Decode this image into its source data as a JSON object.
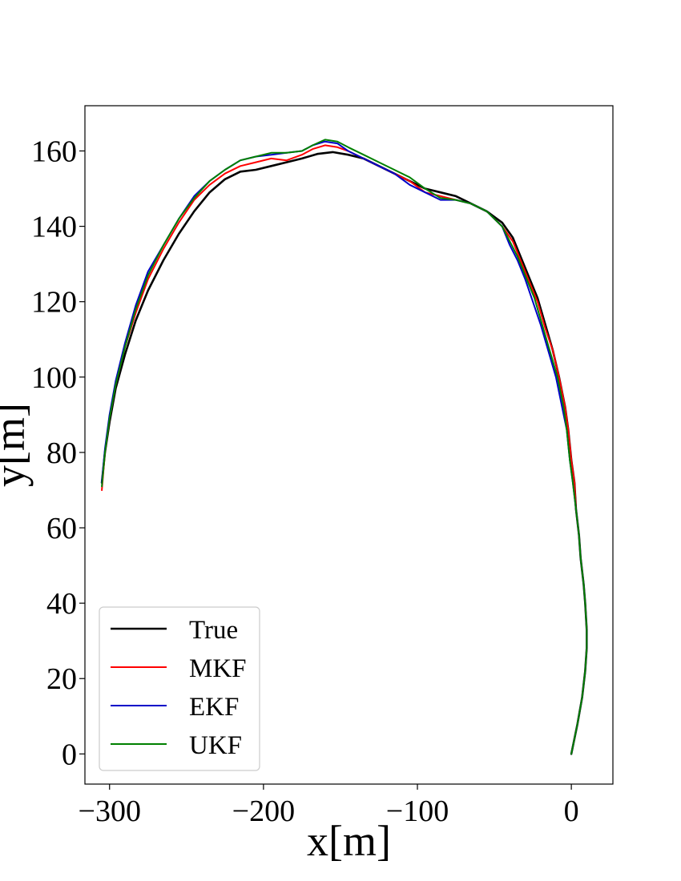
{
  "chart_data": {
    "type": "line",
    "title": "",
    "xlabel": "x[m]",
    "ylabel": "y[m]",
    "xlim": [
      -316,
      27
    ],
    "ylim": [
      -8,
      172
    ],
    "xticks": [
      -300,
      -200,
      -100,
      0
    ],
    "xtick_labels": [
      "−300",
      "−200",
      "−100",
      "0"
    ],
    "yticks": [
      0,
      20,
      40,
      60,
      80,
      100,
      120,
      140,
      160
    ],
    "ytick_labels": [
      "0",
      "20",
      "40",
      "60",
      "80",
      "100",
      "120",
      "140",
      "160"
    ],
    "grid": false,
    "legend_position": "lower-left",
    "series": [
      {
        "name": "True",
        "color": "#000000",
        "points": [
          [
            0,
            0
          ],
          [
            4,
            8
          ],
          [
            7,
            15
          ],
          [
            9,
            22
          ],
          [
            10,
            28
          ],
          [
            10,
            33
          ],
          [
            9,
            40
          ],
          [
            8,
            45
          ],
          [
            6,
            52
          ],
          [
            5,
            58
          ],
          [
            3,
            65
          ],
          [
            2,
            72
          ],
          [
            0,
            78
          ],
          [
            -2,
            86
          ],
          [
            -4,
            92
          ],
          [
            -8,
            100
          ],
          [
            -12,
            107
          ],
          [
            -17,
            114
          ],
          [
            -22,
            121
          ],
          [
            -28,
            127
          ],
          [
            -33,
            132
          ],
          [
            -38,
            137
          ],
          [
            -45,
            141
          ],
          [
            -55,
            144
          ],
          [
            -65,
            146
          ],
          [
            -75,
            148
          ],
          [
            -85,
            149
          ],
          [
            -95,
            150
          ],
          [
            -105,
            152
          ],
          [
            -115,
            154
          ],
          [
            -125,
            156
          ],
          [
            -135,
            158
          ],
          [
            -145,
            159
          ],
          [
            -155,
            159.7
          ],
          [
            -165,
            159.2
          ],
          [
            -175,
            158
          ],
          [
            -185,
            157
          ],
          [
            -195,
            156
          ],
          [
            -205,
            155
          ],
          [
            -215,
            154.5
          ],
          [
            -225,
            152.5
          ],
          [
            -235,
            149
          ],
          [
            -245,
            144
          ],
          [
            -255,
            138
          ],
          [
            -265,
            131
          ],
          [
            -275,
            123
          ],
          [
            -283,
            115
          ],
          [
            -290,
            106
          ],
          [
            -296,
            97
          ],
          [
            -300,
            88
          ],
          [
            -303,
            80
          ],
          [
            -305,
            72
          ]
        ]
      },
      {
        "name": "MKF",
        "color": "#ff0000",
        "points": [
          [
            0,
            0
          ],
          [
            4,
            8
          ],
          [
            7,
            15
          ],
          [
            9,
            22
          ],
          [
            10,
            28
          ],
          [
            10,
            33
          ],
          [
            9,
            40
          ],
          [
            8,
            45
          ],
          [
            6,
            52
          ],
          [
            5,
            58
          ],
          [
            3,
            65
          ],
          [
            2,
            72
          ],
          [
            0,
            78
          ],
          [
            -2,
            86
          ],
          [
            -4,
            92
          ],
          [
            -8,
            100
          ],
          [
            -12,
            107
          ],
          [
            -17,
            113
          ],
          [
            -22,
            120
          ],
          [
            -28,
            126
          ],
          [
            -33,
            131
          ],
          [
            -38,
            136
          ],
          [
            -45,
            140
          ],
          [
            -55,
            144
          ],
          [
            -65,
            146
          ],
          [
            -75,
            147
          ],
          [
            -85,
            148
          ],
          [
            -95,
            149
          ],
          [
            -105,
            152
          ],
          [
            -115,
            154
          ],
          [
            -125,
            156
          ],
          [
            -135,
            158
          ],
          [
            -145,
            160
          ],
          [
            -152,
            161
          ],
          [
            -160,
            161.5
          ],
          [
            -168,
            160.5
          ],
          [
            -175,
            159
          ],
          [
            -185,
            157.5
          ],
          [
            -195,
            158
          ],
          [
            -205,
            157
          ],
          [
            -215,
            156
          ],
          [
            -225,
            154
          ],
          [
            -235,
            151
          ],
          [
            -245,
            147
          ],
          [
            -255,
            141
          ],
          [
            -265,
            134
          ],
          [
            -275,
            126
          ],
          [
            -283,
            117
          ],
          [
            -290,
            108
          ],
          [
            -296,
            98
          ],
          [
            -300,
            89
          ],
          [
            -303,
            80
          ],
          [
            -305,
            70
          ]
        ]
      },
      {
        "name": "EKF",
        "color": "#0000c8",
        "points": [
          [
            0,
            0
          ],
          [
            4,
            8
          ],
          [
            7,
            15
          ],
          [
            9,
            22
          ],
          [
            10,
            28
          ],
          [
            10,
            33
          ],
          [
            9,
            40
          ],
          [
            8,
            45
          ],
          [
            6,
            52
          ],
          [
            5,
            58
          ],
          [
            3,
            65
          ],
          [
            1,
            72
          ],
          [
            -1,
            78
          ],
          [
            -3,
            86
          ],
          [
            -6,
            92
          ],
          [
            -10,
            100
          ],
          [
            -15,
            107
          ],
          [
            -20,
            114
          ],
          [
            -25,
            120
          ],
          [
            -30,
            126
          ],
          [
            -35,
            131
          ],
          [
            -40,
            135
          ],
          [
            -45,
            140
          ],
          [
            -55,
            144
          ],
          [
            -65,
            146
          ],
          [
            -75,
            147
          ],
          [
            -85,
            147
          ],
          [
            -95,
            149
          ],
          [
            -105,
            151
          ],
          [
            -115,
            154
          ],
          [
            -125,
            156
          ],
          [
            -135,
            158
          ],
          [
            -145,
            160
          ],
          [
            -152,
            162
          ],
          [
            -160,
            162.5
          ],
          [
            -168,
            161.5
          ],
          [
            -175,
            160
          ],
          [
            -185,
            159.5
          ],
          [
            -195,
            159
          ],
          [
            -205,
            158.5
          ],
          [
            -215,
            157.5
          ],
          [
            -225,
            155
          ],
          [
            -235,
            152
          ],
          [
            -245,
            148
          ],
          [
            -255,
            142
          ],
          [
            -265,
            135
          ],
          [
            -275,
            128
          ],
          [
            -283,
            119
          ],
          [
            -290,
            109
          ],
          [
            -296,
            99
          ],
          [
            -300,
            90
          ],
          [
            -303,
            81
          ],
          [
            -305,
            72
          ]
        ]
      },
      {
        "name": "UKF",
        "color": "#008000",
        "points": [
          [
            0,
            0
          ],
          [
            4,
            8
          ],
          [
            7,
            15
          ],
          [
            9,
            22
          ],
          [
            10,
            28
          ],
          [
            10,
            33
          ],
          [
            9,
            40
          ],
          [
            8,
            45
          ],
          [
            6,
            52
          ],
          [
            5,
            58
          ],
          [
            3,
            65
          ],
          [
            1,
            72
          ],
          [
            -1,
            78
          ],
          [
            -3,
            86
          ],
          [
            -5,
            92
          ],
          [
            -9,
            100
          ],
          [
            -14,
            107
          ],
          [
            -19,
            114
          ],
          [
            -24,
            121
          ],
          [
            -30,
            127
          ],
          [
            -35,
            132
          ],
          [
            -40,
            136
          ],
          [
            -45,
            140
          ],
          [
            -55,
            144
          ],
          [
            -65,
            146
          ],
          [
            -75,
            147
          ],
          [
            -85,
            147.5
          ],
          [
            -95,
            150
          ],
          [
            -105,
            153
          ],
          [
            -115,
            155
          ],
          [
            -125,
            157
          ],
          [
            -135,
            159
          ],
          [
            -145,
            161
          ],
          [
            -152,
            162.5
          ],
          [
            -160,
            163
          ],
          [
            -168,
            161.5
          ],
          [
            -175,
            160
          ],
          [
            -185,
            159.5
          ],
          [
            -195,
            159.5
          ],
          [
            -205,
            158.5
          ],
          [
            -215,
            157.5
          ],
          [
            -225,
            155
          ],
          [
            -235,
            152
          ],
          [
            -245,
            147.5
          ],
          [
            -255,
            142
          ],
          [
            -265,
            135
          ],
          [
            -275,
            127
          ],
          [
            -283,
            118
          ],
          [
            -290,
            108
          ],
          [
            -296,
            98
          ],
          [
            -300,
            89
          ],
          [
            -303,
            80
          ],
          [
            -305,
            71
          ]
        ]
      }
    ]
  }
}
